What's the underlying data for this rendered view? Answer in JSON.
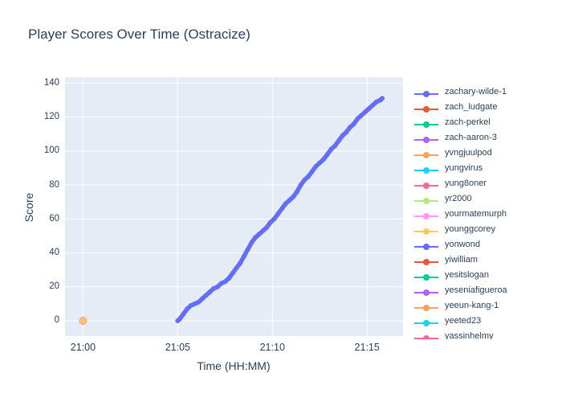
{
  "figure": {
    "title": "Player Scores Over Time (Ostracize)"
  },
  "colors": {
    "figure_background": "#ffffff",
    "plot_background": "#e5ecf6",
    "grid": "#ffffff",
    "text": "#2a3f5f"
  },
  "chart_data": {
    "type": "line",
    "mode": "lines+markers",
    "title": "Player Scores Over Time (Ostracize)",
    "xlabel": "Time (HH:MM)",
    "ylabel": "Score",
    "x_unit": "minutes after 21:00",
    "xlim": [
      -0.95,
      16.9
    ],
    "ylim": [
      -9,
      143.5
    ],
    "grid": true,
    "legend_position": "right",
    "x_ticks": [
      {
        "value": 0,
        "label": "21:00"
      },
      {
        "value": 5,
        "label": "21:05"
      },
      {
        "value": 10,
        "label": "21:10"
      },
      {
        "value": 15,
        "label": "21:15"
      }
    ],
    "y_ticks": [
      {
        "value": 0,
        "label": "0"
      },
      {
        "value": 20,
        "label": "20"
      },
      {
        "value": 40,
        "label": "40"
      },
      {
        "value": 60,
        "label": "60"
      },
      {
        "value": 80,
        "label": "80"
      },
      {
        "value": 100,
        "label": "100"
      },
      {
        "value": 120,
        "label": "120"
      },
      {
        "value": 140,
        "label": "140"
      }
    ],
    "series": [
      {
        "name": "zachary-wilde-1",
        "color": "#636efa",
        "marker_size": 3,
        "points": [
          [
            5.0,
            0
          ],
          [
            5.1,
            1
          ],
          [
            5.3,
            4
          ],
          [
            5.5,
            7
          ],
          [
            5.7,
            9
          ],
          [
            5.9,
            10
          ],
          [
            6.1,
            11
          ],
          [
            6.3,
            13
          ],
          [
            6.5,
            15
          ],
          [
            6.7,
            17
          ],
          [
            6.9,
            19
          ],
          [
            7.1,
            20
          ],
          [
            7.3,
            22
          ],
          [
            7.5,
            23
          ],
          [
            7.7,
            25
          ],
          [
            7.9,
            28
          ],
          [
            8.1,
            31
          ],
          [
            8.3,
            34
          ],
          [
            8.5,
            38
          ],
          [
            8.7,
            42
          ],
          [
            8.9,
            46
          ],
          [
            9.1,
            49
          ],
          [
            9.3,
            51
          ],
          [
            9.5,
            53
          ],
          [
            9.7,
            55
          ],
          [
            9.9,
            58
          ],
          [
            10.1,
            60
          ],
          [
            10.3,
            63
          ],
          [
            10.5,
            66
          ],
          [
            10.7,
            69
          ],
          [
            10.9,
            71
          ],
          [
            11.1,
            73
          ],
          [
            11.3,
            76
          ],
          [
            11.5,
            80
          ],
          [
            11.7,
            83
          ],
          [
            11.9,
            85
          ],
          [
            12.1,
            88
          ],
          [
            12.3,
            91
          ],
          [
            12.5,
            93
          ],
          [
            12.7,
            95
          ],
          [
            12.9,
            98
          ],
          [
            13.1,
            101
          ],
          [
            13.3,
            103
          ],
          [
            13.5,
            106
          ],
          [
            13.7,
            109
          ],
          [
            13.9,
            111
          ],
          [
            14.1,
            114
          ],
          [
            14.3,
            116
          ],
          [
            14.5,
            119
          ],
          [
            14.7,
            121
          ],
          [
            14.9,
            123
          ],
          [
            15.1,
            125
          ],
          [
            15.3,
            127
          ],
          [
            15.5,
            129
          ],
          [
            15.7,
            130
          ],
          [
            15.8,
            131
          ]
        ]
      },
      {
        "name": "zach_ludgate",
        "color": "#ef553b",
        "marker_size": 3,
        "points": []
      },
      {
        "name": "zach-perkel",
        "color": "#00cc96",
        "marker_size": 3,
        "points": []
      },
      {
        "name": "zach-aaron-3",
        "color": "#ab63fa",
        "marker_size": 3,
        "points": []
      },
      {
        "name": "yvngjuulpod",
        "color": "#ffa15a",
        "marker_size": 5,
        "points": [
          [
            0,
            0
          ]
        ]
      },
      {
        "name": "yungvirus",
        "color": "#19d3f3",
        "marker_size": 3,
        "points": []
      },
      {
        "name": "yung8oner",
        "color": "#ff6692",
        "marker_size": 3,
        "points": []
      },
      {
        "name": "yr2000",
        "color": "#b6e880",
        "marker_size": 3,
        "points": []
      },
      {
        "name": "yourmatemurph",
        "color": "#ff97ff",
        "marker_size": 4.3,
        "points": [
          [
            0,
            0
          ]
        ]
      },
      {
        "name": "younggcorey",
        "color": "#fecb52",
        "marker_size": 3.6,
        "points": [
          [
            0,
            0
          ]
        ]
      },
      {
        "name": "yonwond",
        "color": "#636efa",
        "marker_size": 3,
        "points": []
      },
      {
        "name": "yiwilliam",
        "color": "#ef553b",
        "marker_size": 3,
        "points": []
      },
      {
        "name": "yesitslogan",
        "color": "#00cc96",
        "marker_size": 3,
        "points": []
      },
      {
        "name": "yeseniafigueroa",
        "color": "#ab63fa",
        "marker_size": 3,
        "points": []
      },
      {
        "name": "yeeun-kang-1",
        "color": "#ffa15a",
        "marker_size": 3,
        "points": []
      },
      {
        "name": "yeeted23",
        "color": "#19d3f3",
        "marker_size": 3,
        "points": []
      },
      {
        "name": "yassinhelmy",
        "color": "#ff6692",
        "marker_size": 3,
        "points": []
      }
    ]
  }
}
